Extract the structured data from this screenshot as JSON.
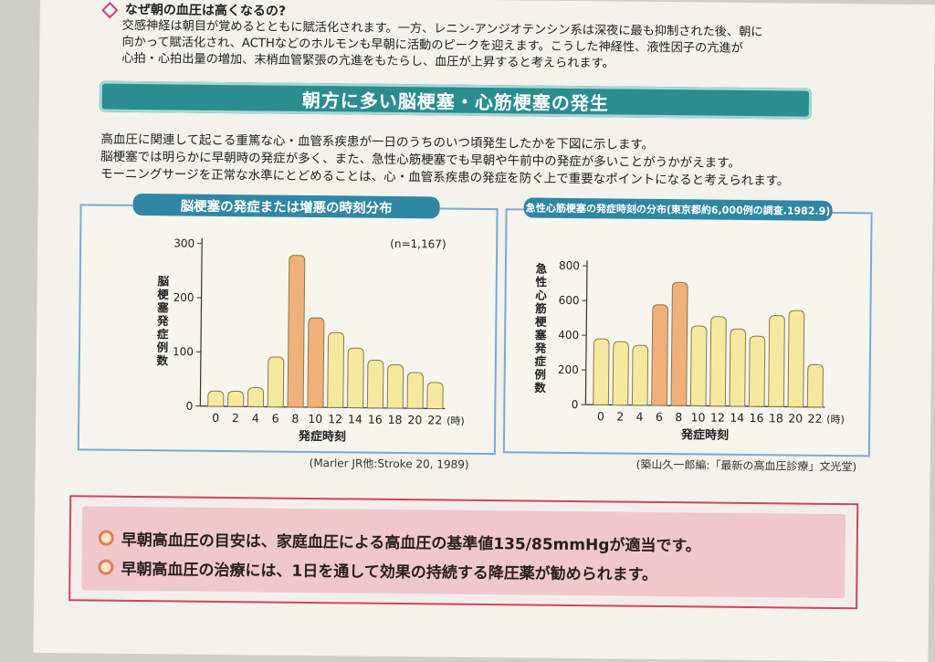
{
  "section_question": {
    "title": "なぜ朝の血圧は高くなるの?",
    "lines": [
      "交感神経は朝目が覚めるとともに賦活化されます。一方、レニン-アンジオテンシン系は深夜に最も抑制された後、朝に",
      "向かって賦活化され、ACTHなどのホルモンも早朝に活動のピークを迎えます。こうした神経性、液性因子の亢進が",
      "心拍・心拍出量の増加、末梢血管緊張の亢進をもたらし、血圧が上昇すると考えられます。"
    ]
  },
  "banner": {
    "title": "朝方に多い脳梗塞・心筋梗塞の発生"
  },
  "intro": {
    "lines": [
      "高血圧に関連して起こる重篤な心・血管系疾患が一日のうちのいつ頃発生したかを下図に示します。",
      "脳梗塞では明らかに早朝時の発症が多く、また、急性心筋梗塞でも早朝や午前中の発症が多いことがうかがえます。",
      "モーニングサージを正常な水準にとどめることは、心・血管系疾患の発症を防ぐ上で重要なポイントになると考えられます。"
    ]
  },
  "chart_data": [
    {
      "type": "bar",
      "title": "脳梗塞の発症または増悪の時刻分布",
      "annotation": "(n=1,167)",
      "xlabel": "発症時刻",
      "xunit": "(時)",
      "ylabel": "脳梗塞発症例数",
      "ylim": [
        0,
        300
      ],
      "yticks": [
        0,
        100,
        200,
        300
      ],
      "categories": [
        "0",
        "2",
        "4",
        "6",
        "8",
        "10",
        "12",
        "14",
        "16",
        "18",
        "20",
        "22"
      ],
      "values": [
        28,
        28,
        35,
        92,
        280,
        165,
        138,
        110,
        88,
        80,
        66,
        48
      ],
      "highlight": [
        "8",
        "10"
      ],
      "source": "(Marler JR他:Stroke 20, 1989)"
    },
    {
      "type": "bar",
      "title": "急性心筋梗塞の発症時刻の分布(東京都約6,000例の調査.1982.9)",
      "xlabel": "発症時刻",
      "xunit": "(時)",
      "ylabel": "急性心筋梗塞発症例数",
      "ylim": [
        0,
        800
      ],
      "yticks": [
        0,
        200,
        400,
        600,
        800
      ],
      "categories": [
        "0",
        "2",
        "4",
        "6",
        "8",
        "10",
        "12",
        "14",
        "16",
        "18",
        "20",
        "22"
      ],
      "values": [
        380,
        365,
        345,
        580,
        710,
        460,
        515,
        445,
        405,
        525,
        555,
        245
      ],
      "highlight": [
        "6",
        "8"
      ],
      "source": "(築山久一郎編:「最新の高血圧診療」文光堂)"
    }
  ],
  "bottom": {
    "items": [
      "早朝高血圧の目安は、家庭血圧による高血圧の基準値135/85mmHgが適当です。",
      "早朝高血圧の治療には、1日を通して効果の持続する降圧薬が勧められます。"
    ]
  },
  "colors": {
    "teal": "#2a8d8f",
    "bar_light": "#f5e9a0",
    "bar_highlight": "#f0b07a",
    "frame": "#7ea7d6",
    "red_frame": "#d2455b"
  }
}
